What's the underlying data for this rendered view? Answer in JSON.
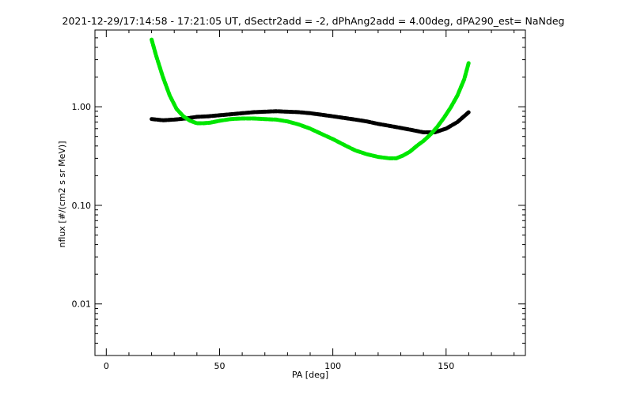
{
  "chart_data": {
    "type": "line",
    "title": "2021-12-29/17:14:58 - 17:21:05 UT, dSectr2add = -2, dPhAng2add = 4.00deg, dPA290_est=   NaNdeg",
    "xlabel": "PA [deg]",
    "ylabel": "nflux [#/(cm2 s sr MeV)]",
    "xlim": [
      -5,
      185
    ],
    "ylim": [
      0.003,
      6.0
    ],
    "yscale": "log",
    "grid": false,
    "x_ticks": [
      0,
      50,
      100,
      150
    ],
    "x_tick_labels": [
      "0",
      "50",
      "100",
      "150"
    ],
    "y_ticks": [
      0.01,
      0.1,
      1.0
    ],
    "y_tick_labels": [
      "0.01",
      "0.10",
      "1.00"
    ],
    "series": [
      {
        "color": "#000000",
        "x": [
          20,
          25,
          30,
          35,
          40,
          45,
          50,
          55,
          60,
          65,
          70,
          75,
          80,
          85,
          90,
          95,
          100,
          105,
          110,
          115,
          120,
          125,
          130,
          135,
          140,
          145,
          150,
          155,
          160
        ],
        "y": [
          0.75,
          0.73,
          0.74,
          0.76,
          0.79,
          0.8,
          0.82,
          0.84,
          0.86,
          0.88,
          0.89,
          0.9,
          0.89,
          0.88,
          0.86,
          0.83,
          0.8,
          0.77,
          0.74,
          0.71,
          0.67,
          0.64,
          0.61,
          0.58,
          0.55,
          0.55,
          0.6,
          0.7,
          0.88
        ]
      },
      {
        "color": "#00e600",
        "x": [
          20,
          22,
          25,
          28,
          31,
          34,
          37,
          40,
          43,
          46,
          50,
          55,
          60,
          65,
          70,
          75,
          80,
          85,
          90,
          95,
          100,
          105,
          110,
          115,
          120,
          125,
          128,
          131,
          134,
          137,
          140,
          143,
          146,
          149,
          152,
          155,
          158,
          160
        ],
        "y": [
          4.8,
          3.3,
          2.0,
          1.3,
          0.95,
          0.8,
          0.72,
          0.68,
          0.68,
          0.69,
          0.72,
          0.75,
          0.76,
          0.76,
          0.75,
          0.74,
          0.71,
          0.66,
          0.6,
          0.53,
          0.47,
          0.41,
          0.36,
          0.33,
          0.31,
          0.3,
          0.3,
          0.32,
          0.35,
          0.4,
          0.45,
          0.52,
          0.62,
          0.77,
          0.98,
          1.3,
          1.9,
          2.8
        ]
      }
    ]
  }
}
